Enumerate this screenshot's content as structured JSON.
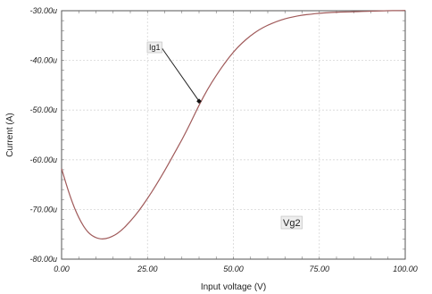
{
  "chart_data": {
    "type": "line",
    "title": "",
    "xlabel": "Input voltage (V)",
    "ylabel": "Current (A)",
    "xlim": [
      0,
      100
    ],
    "ylim": [
      -80,
      -30
    ],
    "x_ticks": [
      0,
      25,
      50,
      75,
      100
    ],
    "x_tick_labels": [
      "0.00",
      "25.00",
      "50.00",
      "75.00",
      "100.00"
    ],
    "y_ticks": [
      -80,
      -70,
      -60,
      -50,
      -40,
      -30
    ],
    "y_tick_labels": [
      "-80.00u",
      "-70.00u",
      "-60.00u",
      "-50.00u",
      "-40.00u",
      "-30.00u"
    ],
    "grid": true,
    "series": [
      {
        "name": "Ig1",
        "color": "#a05a5a",
        "x": [
          0,
          2.5,
          5,
          7.5,
          10,
          12.5,
          15,
          17.5,
          20,
          22.5,
          25,
          27.5,
          30,
          32.5,
          35,
          37.5,
          40,
          42.5,
          45,
          47.5,
          50,
          52.5,
          55,
          57.5,
          60,
          62.5,
          65,
          67.5,
          70,
          72.5,
          75,
          77.5,
          80,
          82.5,
          85,
          87.5,
          90,
          92.5,
          95,
          97.5,
          100
        ],
        "values": [
          -61.8,
          -67.5,
          -71.8,
          -74.6,
          -75.8,
          -76.0,
          -75.4,
          -74.2,
          -72.4,
          -70.3,
          -67.8,
          -65.1,
          -62.2,
          -59.1,
          -56.0,
          -52.6,
          -49.0,
          -45.8,
          -43.0,
          -40.5,
          -38.3,
          -36.5,
          -35.0,
          -33.8,
          -32.9,
          -32.2,
          -31.6,
          -31.2,
          -30.9,
          -30.7,
          -30.5,
          -30.4,
          -30.3,
          -30.25,
          -30.2,
          -30.15,
          -30.1,
          -30.05,
          -30.0,
          -29.98,
          -29.95
        ]
      }
    ],
    "annotations": {
      "series_label": "Ig1",
      "marker_x": 40,
      "marker_y": -48.2,
      "note": "Vg2"
    }
  }
}
